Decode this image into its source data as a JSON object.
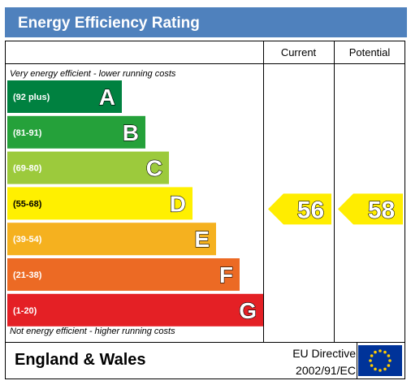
{
  "title": "Energy Efficiency Rating",
  "columns": {
    "current": "Current",
    "potential": "Potential"
  },
  "notes": {
    "top": "Very energy efficient - lower running costs",
    "bottom": "Not energy efficient - higher running costs"
  },
  "footer": {
    "region": "England & Wales",
    "directive_line1": "EU Directive",
    "directive_line2": "2002/91/EC"
  },
  "colors": {
    "header": "#4f81bd",
    "rating_outline": "#ffffff",
    "rating_text": "#ffffff",
    "indicator": "#ffed00"
  },
  "chart_data": {
    "type": "bar",
    "categories": [
      "A",
      "B",
      "C",
      "D",
      "E",
      "F",
      "G"
    ],
    "bands": [
      {
        "letter": "A",
        "range": "(92 plus)",
        "color": "#008140"
      },
      {
        "letter": "B",
        "range": "(81-91)",
        "color": "#25a13a"
      },
      {
        "letter": "C",
        "range": "(69-80)",
        "color": "#9cca3c"
      },
      {
        "letter": "D",
        "range": "(55-68)",
        "color": "#fff000"
      },
      {
        "letter": "E",
        "range": "(39-54)",
        "color": "#f5b11f"
      },
      {
        "letter": "F",
        "range": "(21-38)",
        "color": "#ec6a24"
      },
      {
        "letter": "G",
        "range": "(1-20)",
        "color": "#e42025"
      }
    ],
    "current": {
      "value": 56,
      "band": "D"
    },
    "potential": {
      "value": 58,
      "band": "D"
    }
  }
}
